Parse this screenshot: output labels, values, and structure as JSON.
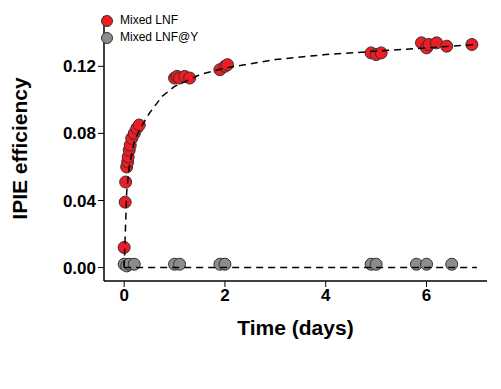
{
  "chart_data": {
    "type": "scatter",
    "x_label": "Time (days)",
    "y_label": "IPIE efficiency",
    "xlim": [
      -0.4,
      7.2
    ],
    "xticks": [
      0,
      2,
      4,
      6
    ],
    "ylim": [
      -0.008,
      0.15
    ],
    "yticks": [
      {
        "value": 0,
        "label": "0.00"
      },
      {
        "value": 0.04,
        "label": "0.04"
      },
      {
        "value": 0.08,
        "label": "0.08"
      },
      {
        "value": 0.12,
        "label": "0.12"
      }
    ],
    "legend": "upper left",
    "series": [
      {
        "name": "Mixed LNF",
        "type": "scatter",
        "color": "#ee1c24",
        "marker": "o",
        "x": [
          0.0,
          0.02,
          0.03,
          0.05,
          0.07,
          0.08,
          0.1,
          0.12,
          0.15,
          0.2,
          0.25,
          0.3,
          1.0,
          1.05,
          1.1,
          1.2,
          1.3,
          1.9,
          2.0,
          2.05,
          4.9,
          5.0,
          5.1,
          5.9,
          6.0,
          6.05,
          6.2,
          6.4,
          6.9
        ],
        "values": [
          0.012,
          0.039,
          0.051,
          0.06,
          0.063,
          0.066,
          0.07,
          0.073,
          0.077,
          0.08,
          0.083,
          0.085,
          0.113,
          0.114,
          0.113,
          0.114,
          0.113,
          0.118,
          0.12,
          0.121,
          0.128,
          0.127,
          0.128,
          0.134,
          0.131,
          0.133,
          0.134,
          0.132,
          0.133
        ]
      },
      {
        "name": "Mixed LNF@Y",
        "type": "scatter",
        "color": "#8c8c8c",
        "marker": "o",
        "x": [
          0.0,
          0.05,
          0.1,
          0.2,
          1.0,
          1.1,
          1.9,
          2.0,
          4.9,
          5.0,
          5.8,
          6.0,
          6.5
        ],
        "values": [
          0.002,
          0.001,
          0.002,
          0.002,
          0.002,
          0.002,
          0.002,
          0.002,
          0.002,
          0.002,
          0.002,
          0.002,
          0.002
        ]
      },
      {
        "type": "line",
        "color": "#000000",
        "marker": "none",
        "line_style": "dashed",
        "x": [
          0,
          0.05,
          0.1,
          0.2,
          0.3,
          0.5,
          0.75,
          1,
          1.5,
          2,
          3,
          4,
          5,
          6,
          7
        ],
        "values": [
          0,
          0.045,
          0.06,
          0.075,
          0.082,
          0.092,
          0.102,
          0.108,
          0.115,
          0.119,
          0.124,
          0.127,
          0.129,
          0.131,
          0.133
        ]
      },
      {
        "type": "line",
        "color": "#000000",
        "marker": "none",
        "line_style": "dashed",
        "x": [
          0,
          1,
          2,
          3,
          4,
          5,
          6,
          7
        ],
        "values": [
          0,
          0,
          0,
          0,
          0,
          0,
          0,
          0
        ]
      }
    ]
  }
}
